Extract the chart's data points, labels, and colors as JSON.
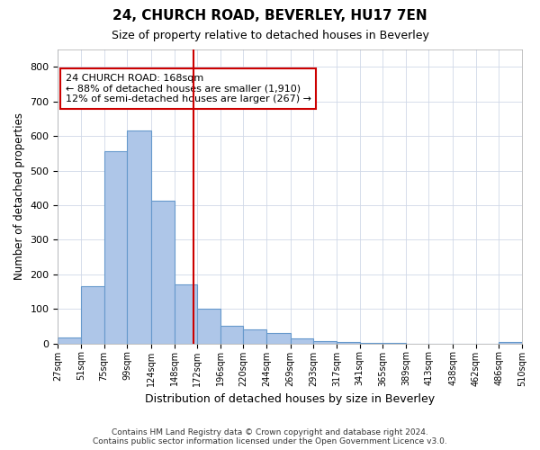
{
  "title": "24, CHURCH ROAD, BEVERLEY, HU17 7EN",
  "subtitle": "Size of property relative to detached houses in Beverley",
  "xlabel": "Distribution of detached houses by size in Beverley",
  "ylabel": "Number of detached properties",
  "annotation_line1": "24 CHURCH ROAD: 168sqm",
  "annotation_line2": "← 88% of detached houses are smaller (1,910)",
  "annotation_line3": "12% of semi-detached houses are larger (267) →",
  "property_size": 168,
  "bin_edges": [
    27,
    51,
    75,
    99,
    124,
    148,
    172,
    196,
    220,
    244,
    269,
    293,
    317,
    341,
    365,
    389,
    413,
    438,
    462,
    486,
    510
  ],
  "bar_heights": [
    18,
    165,
    557,
    617,
    413,
    170,
    100,
    52,
    40,
    30,
    14,
    8,
    5,
    2,
    1,
    0,
    0,
    0,
    0,
    5
  ],
  "bar_color": "#aec6e8",
  "bar_edge_color": "#6699cc",
  "red_line_color": "#cc0000",
  "annotation_box_color": "#cc0000",
  "background_color": "#ffffff",
  "grid_color": "#d0d8e8",
  "footer_text": "Contains HM Land Registry data © Crown copyright and database right 2024.\nContains public sector information licensed under the Open Government Licence v3.0.",
  "ylim": [
    0,
    850
  ],
  "yticks": [
    0,
    100,
    200,
    300,
    400,
    500,
    600,
    700,
    800
  ]
}
